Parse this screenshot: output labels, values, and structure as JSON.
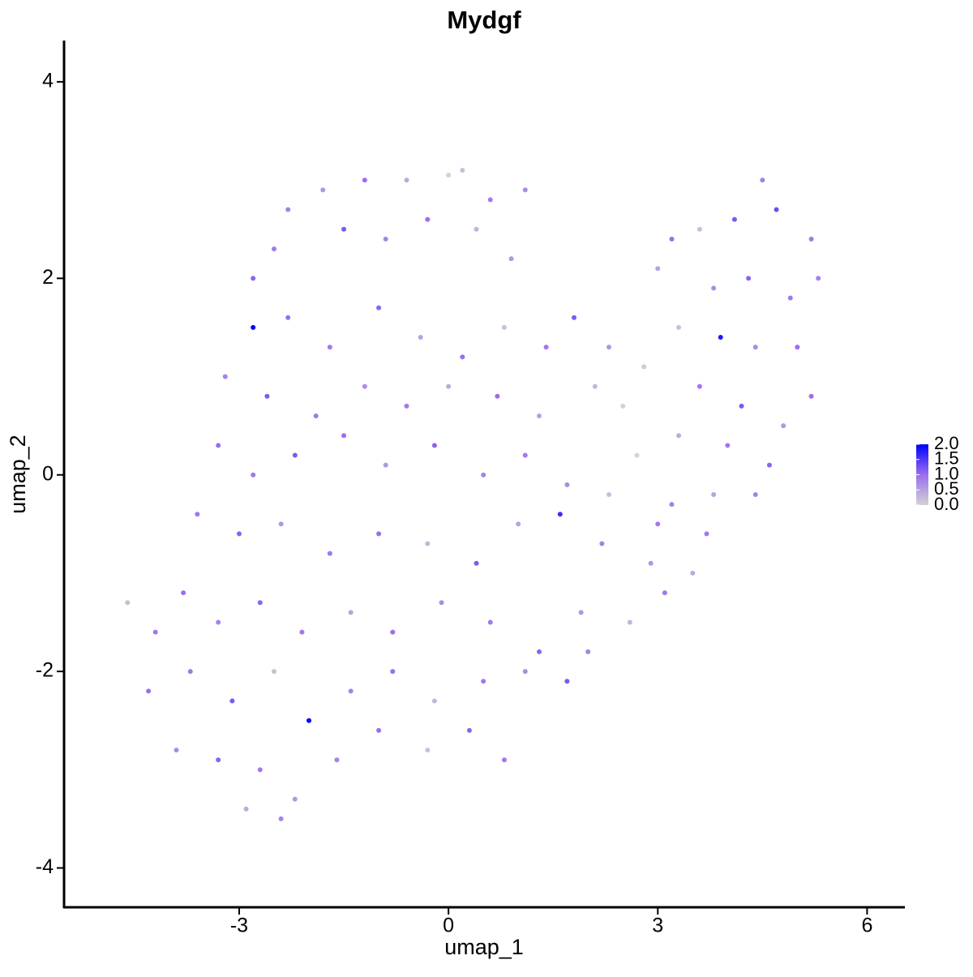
{
  "chart_data": {
    "type": "scatter",
    "title": "Mydgf",
    "x_label": "umap_1",
    "y_label": "umap_2",
    "xlim": [
      -5.51,
      6.53
    ],
    "ylim": [
      -4.4,
      4.42
    ],
    "xticks": [
      -3,
      0,
      3,
      6
    ],
    "yticks": [
      -4,
      -2,
      0,
      2,
      4
    ],
    "color_lim": [
      0,
      2
    ],
    "color_ticks": [
      {
        "value": 0,
        "label": "0.0"
      },
      {
        "value": 0.5,
        "label": "0.5"
      },
      {
        "value": 1,
        "label": "1.0"
      },
      {
        "value": 1.5,
        "label": "1.5"
      },
      {
        "value": 2,
        "label": "2.0"
      }
    ],
    "colors": [
      "#d3d3d3",
      "#9a6ef0",
      "#0000ff"
    ],
    "x": [
      -2.3,
      -1.8,
      -1.2,
      -0.6,
      0,
      0.2,
      0.6,
      1.1,
      -2.8,
      -2.5,
      -1.5,
      -0.9,
      -0.3,
      0.4,
      0.9,
      -2.8,
      -2.3,
      -1.7,
      -1.0,
      -0.4,
      0.2,
      0.8,
      1.4,
      1.8,
      2.3,
      2.8,
      -3.2,
      -2.6,
      -1.9,
      -1.2,
      -0.6,
      0,
      0.7,
      1.3,
      2.1,
      2.5,
      -3.3,
      -2.8,
      -2.2,
      -1.5,
      -0.9,
      -0.2,
      0.5,
      1.1,
      1.7,
      2.3,
      3.2,
      -3.6,
      -3.0,
      -2.4,
      -1.7,
      -1.0,
      -0.3,
      0.4,
      1.0,
      1.6,
      2.2,
      2.9,
      3.5,
      3.7,
      -4.6,
      -4.2,
      -3.8,
      -3.3,
      -2.7,
      -2.1,
      -1.4,
      -0.8,
      -0.1,
      0.6,
      1.3,
      1.9,
      2.6,
      3.1,
      -4.3,
      -3.7,
      -3.1,
      -2.5,
      -2.0,
      -1.4,
      -0.8,
      -0.2,
      0.5,
      1.1,
      1.7,
      2.0,
      -3.9,
      -3.3,
      -2.7,
      -2.2,
      -1.6,
      -1.0,
      -0.3,
      0.3,
      0.8,
      -2.9,
      -2.4,
      3.2,
      3.6,
      4.1,
      4.5,
      4.7,
      5.2,
      3.0,
      3.8,
      4.3,
      4.9,
      5.3,
      3.3,
      3.9,
      4.4,
      5.0,
      3.6,
      4.2,
      4.8,
      5.2,
      3.3,
      4.0,
      4.6,
      3.8,
      4.4,
      2.7,
      3.0
    ],
    "values": [
      2.7,
      2.9,
      3.0,
      3.0,
      3.05,
      3.1,
      2.8,
      2.9,
      2.0,
      2.3,
      2.5,
      2.4,
      2.6,
      2.5,
      2.2,
      1.5,
      1.6,
      1.3,
      1.7,
      1.4,
      1.2,
      1.5,
      1.3,
      1.6,
      1.3,
      1.1,
      1.0,
      0.8,
      0.6,
      0.9,
      0.7,
      0.9,
      0.8,
      0.6,
      0.9,
      0.7,
      0.3,
      0.0,
      0.2,
      0.4,
      0.1,
      0.3,
      0.0,
      0.2,
      -0.1,
      -0.2,
      -0.3,
      -0.4,
      -0.6,
      -0.5,
      -0.8,
      -0.6,
      -0.7,
      -0.9,
      -0.5,
      -0.4,
      -0.7,
      -0.9,
      -1.0,
      -0.6,
      -1.3,
      -1.6,
      -1.2,
      -1.5,
      -1.3,
      -1.6,
      -1.4,
      -1.6,
      -1.3,
      -1.5,
      -1.8,
      -1.4,
      -1.5,
      -1.2,
      -2.2,
      -2.0,
      -2.3,
      -2.0,
      -2.5,
      -2.2,
      -2.0,
      -2.3,
      -2.1,
      -2.0,
      -2.1,
      -1.8,
      -2.8,
      -2.9,
      -3.0,
      -3.3,
      -2.9,
      -2.6,
      -2.8,
      -2.6,
      -2.9,
      -3.4,
      -3.5,
      2.4,
      2.5,
      2.6,
      3.0,
      2.7,
      2.4,
      2.1,
      1.9,
      2.0,
      1.8,
      2.0,
      1.5,
      1.4,
      1.3,
      1.3,
      0.9,
      0.7,
      0.5,
      0.8,
      0.4,
      0.3,
      0.1,
      -0.2,
      -0.2,
      0.2,
      -0.5
    ],
    "expression": [
      0.8,
      0.6,
      1.0,
      0.4,
      0,
      0.2,
      0.9,
      0.7,
      1.1,
      0.9,
      1.2,
      0.8,
      1.0,
      0.3,
      0.6,
      2.0,
      1.0,
      0.9,
      1.1,
      0.5,
      1.0,
      0.2,
      0.9,
      1.2,
      0.6,
      0.1,
      0.8,
      1.2,
      0.9,
      0.7,
      0.9,
      0.4,
      1.0,
      0.5,
      0.3,
      0,
      1.0,
      0.9,
      1.2,
      1.0,
      0.6,
      1.1,
      0.8,
      0.9,
      0.7,
      0.2,
      0.8,
      0.9,
      1.1,
      0.6,
      0.9,
      1.0,
      0.3,
      1.2,
      0.5,
      1.6,
      0.8,
      0.6,
      0.4,
      0.9,
      0.2,
      0.9,
      1.0,
      0.8,
      1.1,
      0.9,
      0.5,
      1.0,
      0.7,
      0.9,
      1.1,
      0.6,
      0.3,
      0.9,
      1.0,
      0.9,
      1.2,
      0.2,
      2.0,
      0.8,
      1.0,
      0.3,
      0.9,
      0.7,
      1.2,
      0.8,
      0.7,
      1.1,
      0.9,
      0.6,
      0.8,
      1.0,
      0.2,
      1.1,
      0.9,
      0.4,
      0.8,
      1.0,
      0.2,
      1.2,
      0.8,
      1.3,
      0.9,
      0.5,
      0.7,
      1.1,
      0.9,
      0.8,
      0.2,
      1.8,
      0.7,
      1.0,
      0.9,
      1.2,
      0.6,
      1.0,
      0.4,
      0.9,
      1.1,
      0.5,
      0.8,
      0,
      0.9
    ]
  }
}
